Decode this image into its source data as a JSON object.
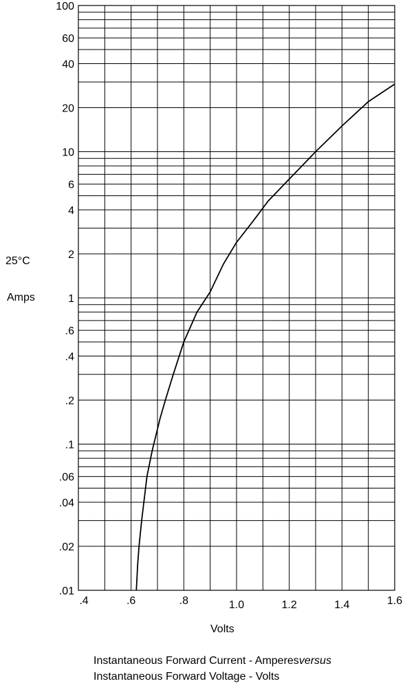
{
  "chart_data": {
    "type": "line",
    "y_scale": "log",
    "title": "",
    "xlabel": "Volts",
    "ylabel_lines": [
      "25°C",
      "Amps"
    ],
    "caption_line1_prefix": "Instantaneous Forward Current - Amperes",
    "caption_line1_italic": "versus",
    "caption_line2": "Instantaneous Forward Voltage - Volts",
    "xlim": [
      0.4,
      1.6
    ],
    "ylim": [
      0.01,
      100
    ],
    "grid": true,
    "x_ticks": [
      0.4,
      0.5,
      0.6,
      0.7,
      0.8,
      0.9,
      1.0,
      1.1,
      1.2,
      1.3,
      1.4,
      1.5,
      1.6
    ],
    "x_tick_labels": [
      {
        "value": 0.4,
        "label": ".4"
      },
      {
        "value": 0.6,
        "label": ".6"
      },
      {
        "value": 0.8,
        "label": ".8"
      },
      {
        "value": 1.0,
        "label": "1.0"
      },
      {
        "value": 1.2,
        "label": "1.2"
      },
      {
        "value": 1.4,
        "label": "1.4"
      },
      {
        "value": 1.6,
        "label": "1.6"
      }
    ],
    "y_tick_labels": [
      {
        "value": 100,
        "label": "100"
      },
      {
        "value": 60,
        "label": "60"
      },
      {
        "value": 40,
        "label": "40"
      },
      {
        "value": 20,
        "label": "20"
      },
      {
        "value": 10,
        "label": "10"
      },
      {
        "value": 6,
        "label": "6"
      },
      {
        "value": 4,
        "label": "4"
      },
      {
        "value": 2,
        "label": "2"
      },
      {
        "value": 1,
        "label": "1"
      },
      {
        "value": 0.6,
        "label": ".6"
      },
      {
        "value": 0.4,
        "label": ".4"
      },
      {
        "value": 0.2,
        "label": ".2"
      },
      {
        "value": 0.1,
        "label": ".1"
      },
      {
        "value": 0.06,
        "label": ".06"
      },
      {
        "value": 0.04,
        "label": ".04"
      },
      {
        "value": 0.02,
        "label": ".02"
      },
      {
        "value": 0.01,
        "label": ".01"
      }
    ],
    "y_gridlines": [
      0.01,
      0.02,
      0.03,
      0.04,
      0.05,
      0.06,
      0.07,
      0.08,
      0.09,
      0.1,
      0.2,
      0.3,
      0.4,
      0.5,
      0.6,
      0.7,
      0.8,
      0.9,
      1,
      2,
      3,
      4,
      5,
      6,
      7,
      8,
      9,
      10,
      20,
      30,
      40,
      50,
      60,
      70,
      80,
      90,
      100
    ],
    "series": [
      {
        "points": [
          {
            "x": 0.62,
            "y": 0.01
          },
          {
            "x": 0.625,
            "y": 0.015
          },
          {
            "x": 0.63,
            "y": 0.02
          },
          {
            "x": 0.64,
            "y": 0.03
          },
          {
            "x": 0.66,
            "y": 0.06
          },
          {
            "x": 0.68,
            "y": 0.09
          },
          {
            "x": 0.71,
            "y": 0.15
          },
          {
            "x": 0.73,
            "y": 0.2
          },
          {
            "x": 0.76,
            "y": 0.3
          },
          {
            "x": 0.8,
            "y": 0.5
          },
          {
            "x": 0.85,
            "y": 0.8
          },
          {
            "x": 0.9,
            "y": 1.1
          },
          {
            "x": 0.95,
            "y": 1.7
          },
          {
            "x": 1.0,
            "y": 2.4
          },
          {
            "x": 1.06,
            "y": 3.3
          },
          {
            "x": 1.12,
            "y": 4.6
          },
          {
            "x": 1.2,
            "y": 6.5
          },
          {
            "x": 1.3,
            "y": 10
          },
          {
            "x": 1.4,
            "y": 15
          },
          {
            "x": 1.5,
            "y": 22
          },
          {
            "x": 1.6,
            "y": 29
          }
        ]
      }
    ]
  }
}
